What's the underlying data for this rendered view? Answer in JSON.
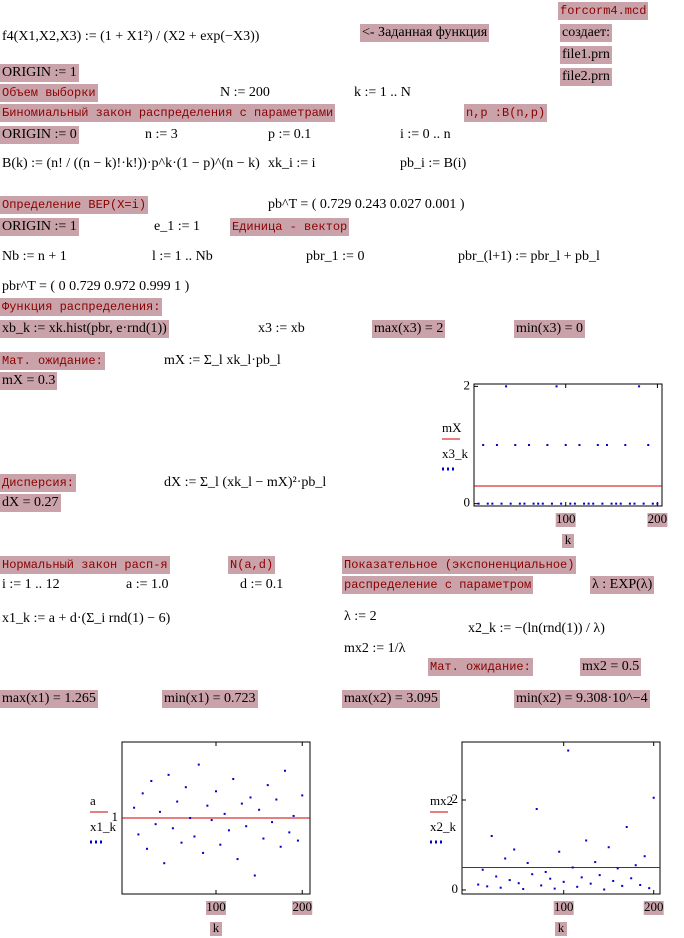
{
  "blocks": [
    "f4(X1,X2,X3) := (1 + X1²) / (X2 + exp(−X3))",
    "<- Заданная функция",
    "forcorm4.mcd",
    "создает:",
    "file1.prn",
    "file2.prn",
    "ORIGIN := 1",
    "Объем выборки",
    "N := 200",
    "k := 1 .. N",
    "Биномиальный закон распределения с параметрами",
    "n,p :B(n,p)",
    "ORIGIN := 0",
    "n := 3",
    "p := 0.1",
    "i := 0 .. n",
    "B(k) := (n! / ((n − k)!·k!))·p^k·(1 − p)^(n − k)",
    "xk_i := i",
    "pb_i := B(i)",
    "Определение ВЕР(X=i)",
    "pb^T = ( 0.729  0.243  0.027  0.001 )",
    "ORIGIN := 1",
    "e_1 := 1",
    "Единица - вектор",
    "Nb := n + 1",
    "l := 1 .. Nb",
    "pbr_1 := 0",
    "pbr_(l+1) := pbr_l + pb_l",
    "pbr^T = ( 0   0.729  0.972  0.999  1 )",
    "Функция распределения:",
    "xb_k := xk.hist(pbr, e·rnd(1))",
    "x3 := xb",
    "max(x3) = 2",
    "min(x3) = 0",
    "Мат. ожидание:",
    "mX := Σ_l xk_l·pb_l",
    "mX = 0.3",
    "Дисперсия:",
    "dX := Σ_l (xk_l − mX)²·pb_l",
    "dX = 0.27",
    "Нормальный закон расп-я",
    "N(a,d)",
    "Показательное (экспоненциальное)",
    "распределение с параметром",
    "λ : EXP(λ)",
    "i := 1 .. 12",
    "a := 1.0",
    "d := 0.1",
    "x1_k := a + d·(Σ_i rnd(1) − 6)",
    "λ := 2",
    "x2_k := −(ln(rnd(1)) / λ)",
    "mx2 := 1/λ",
    "Мат. ожидание:",
    "mx2 = 0.5",
    "max(x1) = 1.265",
    "min(x1) = 0.723",
    "max(x2) = 3.095",
    "min(x2) = 9.308·10^−4"
  ],
  "plots": [
    {
      "x_label": "k",
      "y_labels": [
        "mX",
        "x3_k"
      ],
      "xlim": [
        0,
        205
      ],
      "ylim": [
        -0.04,
        2.04
      ],
      "xticks": [
        100,
        200
      ],
      "yticks": [
        0,
        2
      ],
      "line_value": 0.3,
      "line_color": "#cc0000",
      "point_color": "#0000cc",
      "points_x": [
        5,
        10,
        15,
        20,
        25,
        30,
        35,
        40,
        45,
        50,
        55,
        60,
        65,
        70,
        75,
        80,
        85,
        90,
        95,
        100,
        105,
        110,
        115,
        120,
        125,
        130,
        135,
        140,
        145,
        150,
        155,
        160,
        165,
        170,
        175,
        180,
        185,
        190,
        195,
        200
      ],
      "points_y": [
        0,
        1,
        0,
        0,
        1,
        0,
        2,
        0,
        1,
        0,
        0,
        1,
        0,
        0,
        0,
        1,
        0,
        2,
        0,
        1,
        0,
        0,
        1,
        0,
        0,
        0,
        1,
        0,
        1,
        0,
        0,
        0,
        1,
        0,
        0,
        2,
        0,
        1,
        0,
        0
      ]
    },
    {
      "x_label": "k",
      "y_labels": [
        "a",
        "x1_k"
      ],
      "xlim": [
        -9,
        209
      ],
      "ylim": [
        0.63,
        1.37
      ],
      "xticks": [
        100,
        200
      ],
      "yticks": [
        1
      ],
      "line_value": 1.0,
      "line_color": "#cc0000",
      "point_color": "#0000cc",
      "points_x": [
        5,
        10,
        15,
        20,
        25,
        30,
        35,
        40,
        45,
        50,
        55,
        60,
        65,
        70,
        75,
        80,
        85,
        90,
        95,
        100,
        105,
        110,
        115,
        120,
        125,
        130,
        135,
        140,
        145,
        150,
        155,
        160,
        165,
        170,
        175,
        180,
        185,
        190,
        195,
        200
      ],
      "points_y": [
        1.05,
        0.92,
        1.12,
        0.85,
        1.18,
        0.97,
        1.03,
        0.78,
        1.21,
        0.95,
        1.08,
        0.88,
        1.15,
        1.0,
        0.91,
        1.26,
        0.83,
        1.06,
        0.99,
        1.13,
        0.87,
        1.02,
        0.94,
        1.19,
        0.8,
        1.07,
        0.96,
        1.1,
        0.72,
        1.04,
        0.9,
        1.16,
        0.98,
        1.09,
        0.86,
        1.23,
        0.93,
        1.01,
        0.89,
        1.11
      ]
    },
    {
      "x_label": "k",
      "y_labels": [
        "mx2",
        "x2_k"
      ],
      "xlim": [
        -13,
        207
      ],
      "ylim": [
        -0.09,
        3.29
      ],
      "xticks": [
        100,
        200
      ],
      "yticks": [
        0,
        2
      ],
      "line_value": 0.5,
      "line_color": "#cc0000",
      "point_color": "#0000cc",
      "points_x": [
        5,
        10,
        15,
        20,
        25,
        30,
        35,
        40,
        45,
        50,
        55,
        60,
        65,
        70,
        75,
        80,
        85,
        90,
        95,
        100,
        105,
        110,
        115,
        120,
        125,
        130,
        135,
        140,
        145,
        150,
        155,
        160,
        165,
        170,
        175,
        180,
        185,
        190,
        195,
        200
      ],
      "points_y": [
        0.12,
        0.45,
        0.08,
        1.2,
        0.3,
        0.05,
        0.7,
        0.22,
        0.9,
        0.15,
        0.02,
        0.6,
        0.35,
        1.8,
        0.1,
        0.4,
        0.25,
        0.03,
        0.85,
        0.18,
        3.1,
        0.5,
        0.07,
        0.28,
        1.1,
        0.14,
        0.62,
        0.33,
        0.01,
        0.95,
        0.2,
        0.48,
        0.09,
        1.4,
        0.26,
        0.55,
        0.11,
        0.75,
        0.04,
        2.05
      ]
    }
  ]
}
